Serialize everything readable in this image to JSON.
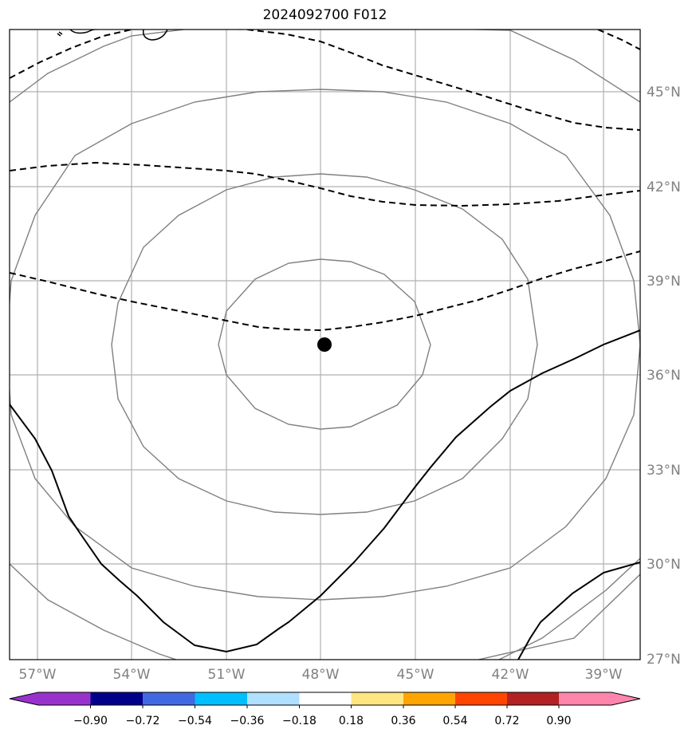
{
  "title": "2024092700 F012",
  "map": {
    "lat_labels": [
      "45°N",
      "42°N",
      "39°N",
      "36°N",
      "33°N",
      "30°N",
      "27°N"
    ],
    "lon_labels": [
      "57°W",
      "54°W",
      "51°W",
      "48°W",
      "45°W",
      "42°W",
      "39°W"
    ],
    "center_marker": "storm-center"
  },
  "colorbar": {
    "ticks": [
      "−0.90",
      "−0.72",
      "−0.54",
      "−0.36",
      "−0.18",
      "0.18",
      "0.36",
      "0.54",
      "0.72",
      "0.90"
    ],
    "colors": [
      "#9932cc",
      "#00008b",
      "#4169e1",
      "#00bfff",
      "#b0e0ff",
      "#ffffff",
      "#ffe680",
      "#ffa500",
      "#ff4500",
      "#b22222",
      "#ff85ad"
    ]
  }
}
